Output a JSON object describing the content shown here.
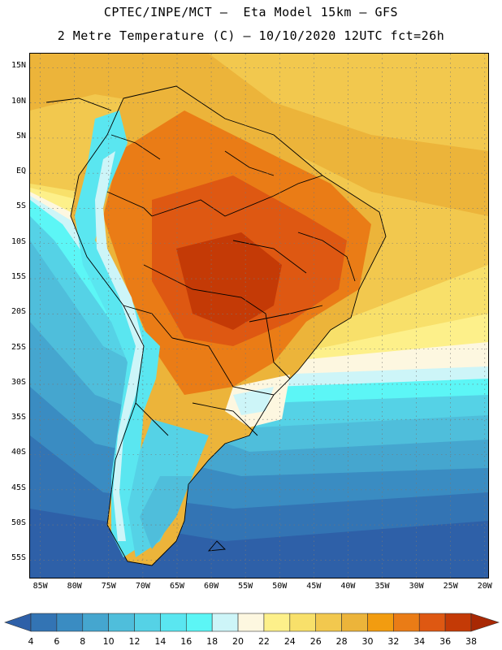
{
  "header": {
    "line1": "CPTEC/INPE/MCT –  Eta Model 15km – GFS",
    "line2": "2 Metre Temperature (C) – 10/10/2020 12UTC fct=26h"
  },
  "map": {
    "lat_labels": [
      "15N",
      "10N",
      "5N",
      "EQ",
      "5S",
      "10S",
      "15S",
      "20S",
      "25S",
      "30S",
      "35S",
      "40S",
      "45S",
      "50S",
      "55S"
    ],
    "lat_values": [
      15,
      10,
      5,
      0,
      -5,
      -10,
      -15,
      -20,
      -25,
      -30,
      -35,
      -40,
      -45,
      -50,
      -55
    ],
    "lon_labels": [
      "85W",
      "80W",
      "75W",
      "70W",
      "65W",
      "60W",
      "55W",
      "50W",
      "45W",
      "40W",
      "35W",
      "30W",
      "25W",
      "20W"
    ],
    "lon_values": [
      -85,
      -80,
      -75,
      -70,
      -65,
      -60,
      -55,
      -50,
      -45,
      -40,
      -35,
      -30,
      -25,
      -20
    ],
    "lat_range": [
      -57.5,
      17.0
    ],
    "lon_range": [
      -86.5,
      -19.5
    ],
    "grid": true
  },
  "colorbar": {
    "levels": [
      "4",
      "6",
      "8",
      "10",
      "12",
      "14",
      "16",
      "18",
      "20",
      "22",
      "24",
      "26",
      "28",
      "30",
      "32",
      "34",
      "36",
      "38"
    ],
    "colors": [
      "#2e60a8",
      "#3374b4",
      "#3a8cc2",
      "#45a6cf",
      "#4fbedb",
      "#55d2e6",
      "#5ae6f0",
      "#5cf6f6",
      "#cdf5f8",
      "#fdf7e0",
      "#fdf08a",
      "#f8e06a",
      "#f2c84e",
      "#ecb43a",
      "#f29c10",
      "#ea7c16",
      "#de5812",
      "#c43a06",
      "#a82804"
    ]
  }
}
